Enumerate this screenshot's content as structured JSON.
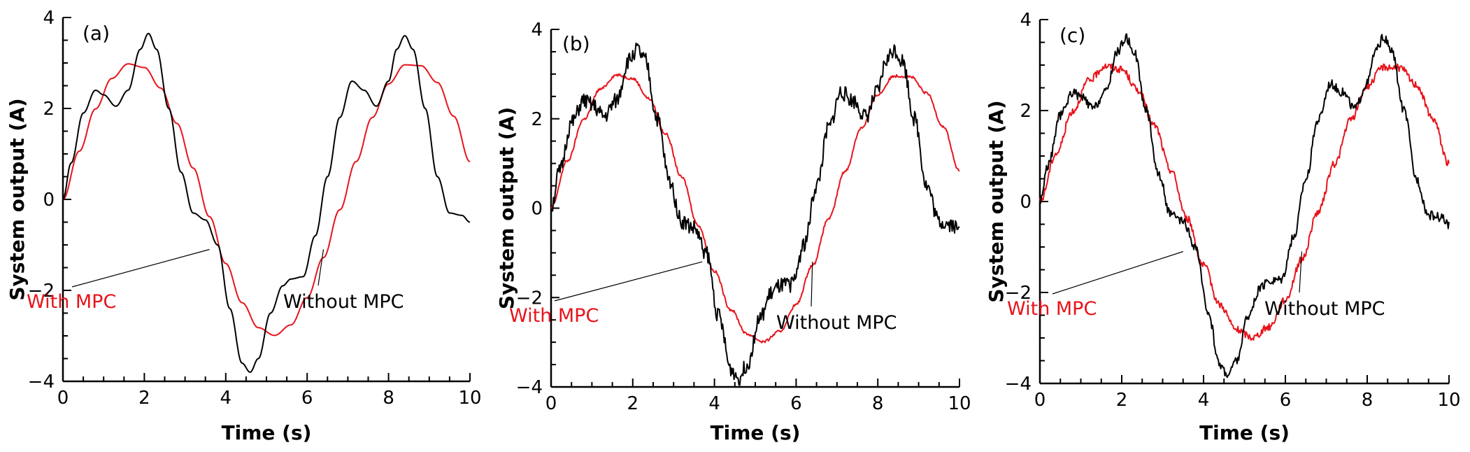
{
  "figure": {
    "colors": {
      "with_mpc": "#e8141b",
      "without_mpc": "#000000",
      "axis": "#000000"
    }
  },
  "chart_data": [
    {
      "type": "line",
      "panel_label": "(a)",
      "xlabel": "Time (s)",
      "ylabel": "System output (A)",
      "xlim": [
        0,
        10
      ],
      "ylim": [
        -4,
        4
      ],
      "xticks": [
        0,
        2,
        4,
        6,
        8,
        10
      ],
      "yticks": [
        -4,
        -2,
        0,
        2,
        4
      ],
      "grid": false,
      "annotations": [
        {
          "text": "With MPC",
          "series": "With MPC",
          "points_to": [
            3.6,
            -1.1
          ]
        },
        {
          "text": "Without MPC",
          "series": "Without MPC",
          "points_to": [
            6.4,
            -1.1
          ]
        }
      ],
      "series": [
        {
          "name": "With MPC",
          "color": "#e8141b",
          "noise": 0,
          "x": [
            0,
            0.4,
            0.8,
            1.2,
            1.6,
            2.0,
            2.4,
            2.8,
            3.2,
            3.6,
            4.0,
            4.4,
            4.8,
            5.2,
            5.6,
            6.0,
            6.4,
            6.8,
            7.2,
            7.6,
            8.0,
            8.4,
            8.8,
            9.2,
            9.6,
            10.0
          ],
          "y": [
            0,
            1.06,
            1.99,
            2.66,
            2.98,
            2.9,
            2.45,
            1.67,
            0.69,
            -0.38,
            -1.41,
            -2.27,
            -2.82,
            -2.99,
            -2.76,
            -2.16,
            -1.28,
            -0.23,
            0.83,
            1.8,
            2.54,
            2.96,
            2.94,
            2.57,
            1.83,
            0.83
          ]
        },
        {
          "name": "Without MPC",
          "color": "#000000",
          "noise": 0,
          "x": [
            0,
            0.2,
            0.5,
            0.8,
            1.0,
            1.3,
            1.6,
            1.9,
            2.1,
            2.3,
            2.6,
            2.9,
            3.2,
            3.5,
            3.8,
            4.1,
            4.4,
            4.6,
            4.8,
            5.1,
            5.4,
            5.6,
            5.9,
            6.2,
            6.5,
            6.8,
            7.1,
            7.4,
            7.7,
            8.0,
            8.2,
            8.4,
            8.6,
            8.9,
            9.2,
            9.5,
            9.8,
            10.0
          ],
          "y": [
            0,
            0.8,
            1.9,
            2.4,
            2.3,
            2.05,
            2.4,
            3.3,
            3.65,
            3.3,
            2.0,
            0.6,
            -0.3,
            -0.45,
            -1.0,
            -2.4,
            -3.6,
            -3.8,
            -3.5,
            -2.5,
            -1.9,
            -1.75,
            -1.7,
            -0.8,
            0.5,
            1.8,
            2.6,
            2.4,
            2.05,
            2.6,
            3.3,
            3.6,
            3.3,
            2.0,
            0.5,
            -0.3,
            -0.35,
            -0.5
          ]
        }
      ]
    },
    {
      "type": "line",
      "panel_label": "(b)",
      "xlabel": "Time (s)",
      "ylabel": "System output (A)",
      "xlim": [
        0,
        10
      ],
      "ylim": [
        -4,
        4
      ],
      "xticks": [
        0,
        2,
        4,
        6,
        8,
        10
      ],
      "yticks": [
        -4,
        -2,
        0,
        2,
        4
      ],
      "grid": false,
      "annotations": [
        {
          "text": "With MPC",
          "series": "With MPC",
          "points_to": [
            3.7,
            -1.2
          ]
        },
        {
          "text": "Without MPC",
          "series": "Without MPC",
          "points_to": [
            6.4,
            -1.2
          ]
        }
      ],
      "series": [
        {
          "name": "With MPC",
          "color": "#e8141b",
          "noise": 0.03,
          "x": [
            0,
            0.4,
            0.8,
            1.2,
            1.6,
            2.0,
            2.4,
            2.8,
            3.2,
            3.6,
            4.0,
            4.4,
            4.8,
            5.2,
            5.6,
            6.0,
            6.4,
            6.8,
            7.2,
            7.6,
            8.0,
            8.4,
            8.8,
            9.2,
            9.6,
            10.0
          ],
          "y": [
            0,
            1.06,
            1.99,
            2.66,
            2.98,
            2.9,
            2.45,
            1.67,
            0.69,
            -0.38,
            -1.41,
            -2.27,
            -2.82,
            -2.99,
            -2.76,
            -2.16,
            -1.28,
            -0.23,
            0.83,
            1.8,
            2.54,
            2.96,
            2.94,
            2.57,
            1.83,
            0.83
          ]
        },
        {
          "name": "Without MPC",
          "color": "#000000",
          "noise": 0.18,
          "x": [
            0,
            0.2,
            0.5,
            0.8,
            1.0,
            1.3,
            1.6,
            1.9,
            2.1,
            2.3,
            2.6,
            2.9,
            3.2,
            3.5,
            3.8,
            4.1,
            4.4,
            4.6,
            4.8,
            5.1,
            5.4,
            5.6,
            5.9,
            6.2,
            6.5,
            6.8,
            7.1,
            7.4,
            7.7,
            8.0,
            8.2,
            8.4,
            8.6,
            8.9,
            9.2,
            9.5,
            9.8,
            10.0
          ],
          "y": [
            0,
            0.8,
            1.9,
            2.4,
            2.3,
            2.05,
            2.4,
            3.3,
            3.55,
            3.3,
            2.0,
            0.6,
            -0.3,
            -0.45,
            -1.0,
            -2.4,
            -3.6,
            -3.8,
            -3.5,
            -2.5,
            -1.9,
            -1.75,
            -1.7,
            -0.8,
            0.5,
            1.8,
            2.6,
            2.4,
            2.05,
            2.6,
            3.3,
            3.55,
            3.3,
            2.0,
            0.5,
            -0.3,
            -0.35,
            -0.5
          ]
        }
      ]
    },
    {
      "type": "line",
      "panel_label": "(c)",
      "xlabel": "Time (s)",
      "ylabel": "System output (A)",
      "xlim": [
        0,
        10
      ],
      "ylim": [
        -4,
        4
      ],
      "xticks": [
        0,
        2,
        4,
        6,
        8,
        10
      ],
      "yticks": [
        -4,
        -2,
        0,
        2,
        4
      ],
      "grid": false,
      "annotations": [
        {
          "text": "With MPC",
          "series": "With MPC",
          "points_to": [
            3.5,
            -1.1
          ]
        },
        {
          "text": "Without MPC",
          "series": "Without MPC",
          "points_to": [
            6.4,
            -1.1
          ]
        }
      ],
      "series": [
        {
          "name": "With MPC",
          "color": "#e8141b",
          "noise": 0.08,
          "x": [
            0,
            0.4,
            0.8,
            1.2,
            1.6,
            2.0,
            2.4,
            2.8,
            3.2,
            3.6,
            4.0,
            4.4,
            4.8,
            5.2,
            5.6,
            6.0,
            6.4,
            6.8,
            7.2,
            7.6,
            8.0,
            8.4,
            8.8,
            9.2,
            9.6,
            10.0
          ],
          "y": [
            0,
            1.06,
            1.99,
            2.66,
            2.98,
            2.9,
            2.45,
            1.67,
            0.69,
            -0.38,
            -1.41,
            -2.27,
            -2.82,
            -2.99,
            -2.76,
            -2.16,
            -1.28,
            -0.23,
            0.83,
            1.8,
            2.54,
            2.96,
            2.94,
            2.57,
            1.83,
            0.83
          ]
        },
        {
          "name": "Without MPC",
          "color": "#000000",
          "noise": 0.1,
          "x": [
            0,
            0.2,
            0.5,
            0.8,
            1.0,
            1.3,
            1.6,
            1.9,
            2.1,
            2.3,
            2.6,
            2.9,
            3.2,
            3.5,
            3.8,
            4.1,
            4.4,
            4.6,
            4.8,
            5.1,
            5.4,
            5.6,
            5.9,
            6.2,
            6.5,
            6.8,
            7.1,
            7.4,
            7.7,
            8.0,
            8.2,
            8.4,
            8.6,
            8.9,
            9.2,
            9.5,
            9.8,
            10.0
          ],
          "y": [
            0,
            0.8,
            1.9,
            2.4,
            2.3,
            2.05,
            2.4,
            3.3,
            3.6,
            3.3,
            2.0,
            0.6,
            -0.3,
            -0.45,
            -1.0,
            -2.4,
            -3.6,
            -3.8,
            -3.5,
            -2.5,
            -1.9,
            -1.75,
            -1.7,
            -0.8,
            0.5,
            1.8,
            2.6,
            2.4,
            2.05,
            2.6,
            3.3,
            3.6,
            3.3,
            2.0,
            0.5,
            -0.3,
            -0.35,
            -0.5
          ]
        }
      ]
    }
  ]
}
